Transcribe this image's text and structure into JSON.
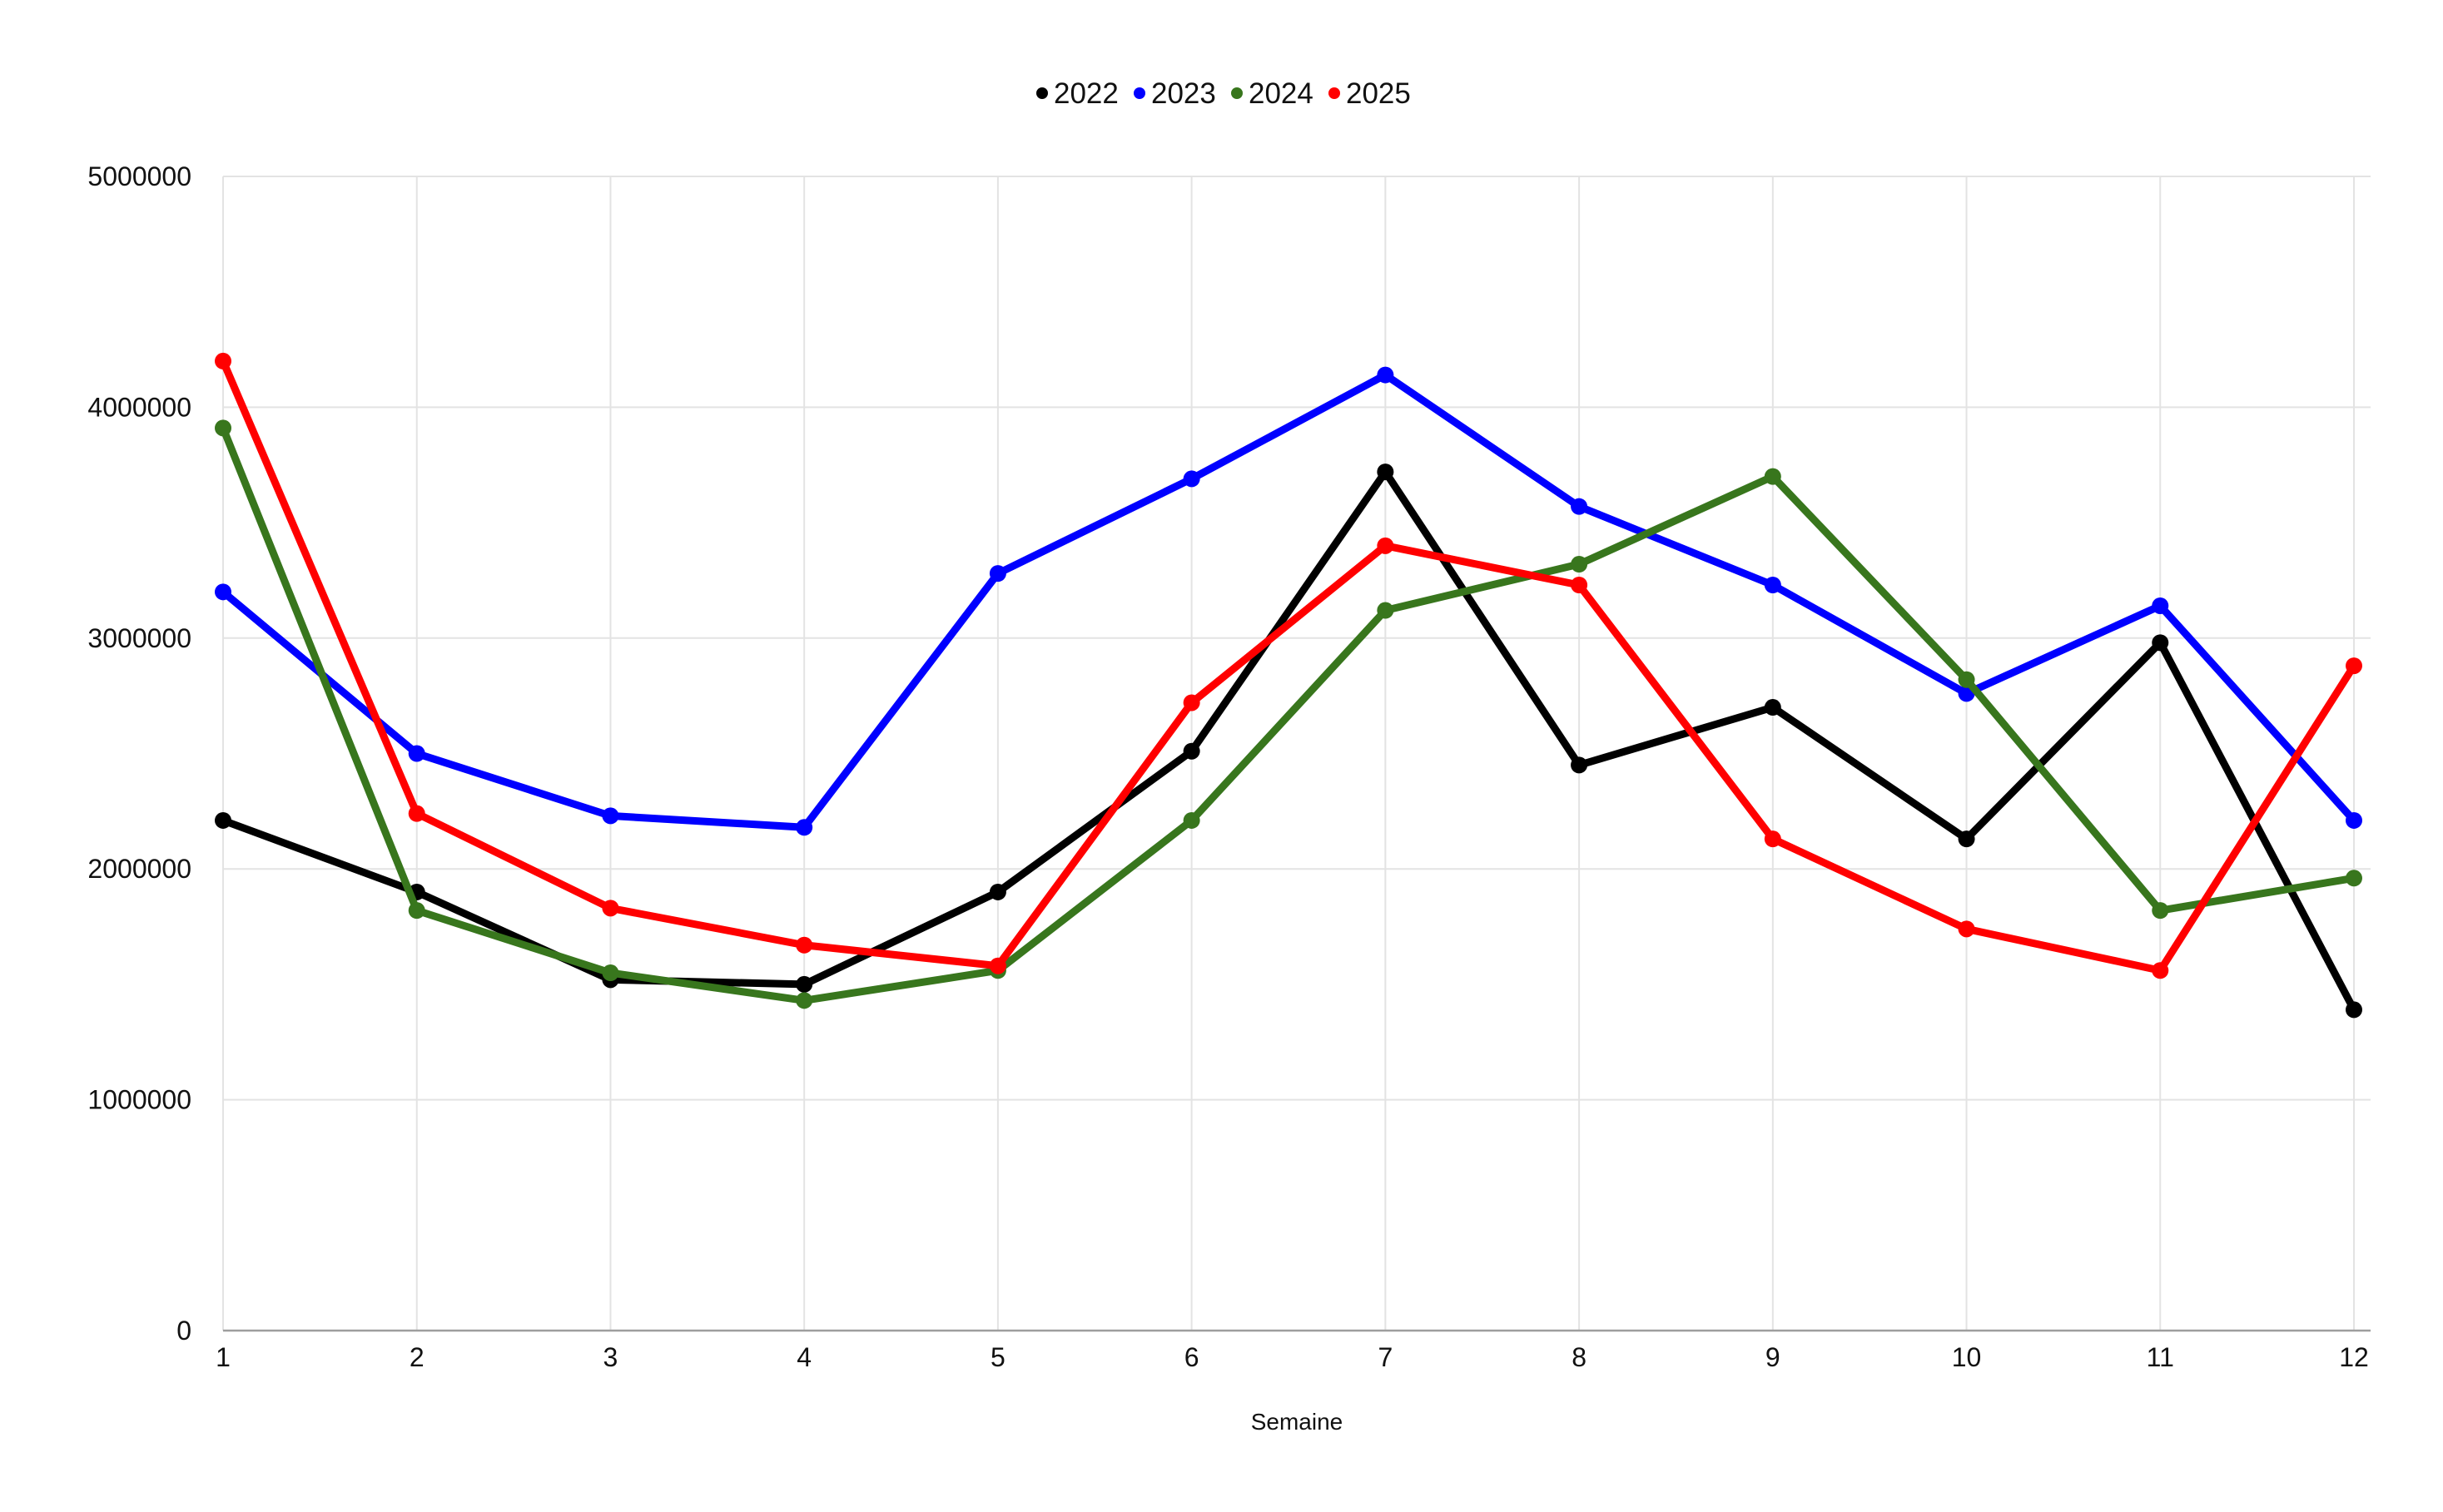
{
  "chart_data": {
    "type": "line",
    "title": "",
    "xlabel": "Semaine",
    "ylabel": "",
    "x": [
      1,
      2,
      3,
      4,
      5,
      6,
      7,
      8,
      9,
      10,
      11,
      12
    ],
    "categories": [
      "1",
      "2",
      "3",
      "4",
      "5",
      "6",
      "7",
      "8",
      "9",
      "10",
      "11",
      "12"
    ],
    "ylim": [
      0,
      5000000
    ],
    "yticks": [
      0,
      1000000,
      2000000,
      3000000,
      4000000,
      5000000
    ],
    "ytick_labels": [
      "0",
      "1000000",
      "2000000",
      "3000000",
      "4000000",
      "5000000"
    ],
    "grid": true,
    "legend_position": "top-center",
    "series": [
      {
        "name": "2022",
        "color": "#000000",
        "values": [
          2210000,
          1900000,
          1520000,
          1500000,
          1900000,
          2510000,
          3720000,
          2450000,
          2700000,
          2130000,
          2980000,
          1390000
        ]
      },
      {
        "name": "2023",
        "color": "#0000ff",
        "values": [
          3200000,
          2500000,
          2230000,
          2180000,
          3280000,
          3690000,
          4140000,
          3570000,
          3230000,
          2760000,
          3140000,
          2210000
        ]
      },
      {
        "name": "2024",
        "color": "#38761d",
        "values": [
          3910000,
          1820000,
          1550000,
          1430000,
          1560000,
          2210000,
          3120000,
          3320000,
          3700000,
          2820000,
          1820000,
          1960000
        ]
      },
      {
        "name": "2025",
        "color": "#ff0000",
        "values": [
          4200000,
          2240000,
          1830000,
          1670000,
          1580000,
          2720000,
          3400000,
          3230000,
          2130000,
          1740000,
          1560000,
          2880000
        ]
      }
    ]
  }
}
